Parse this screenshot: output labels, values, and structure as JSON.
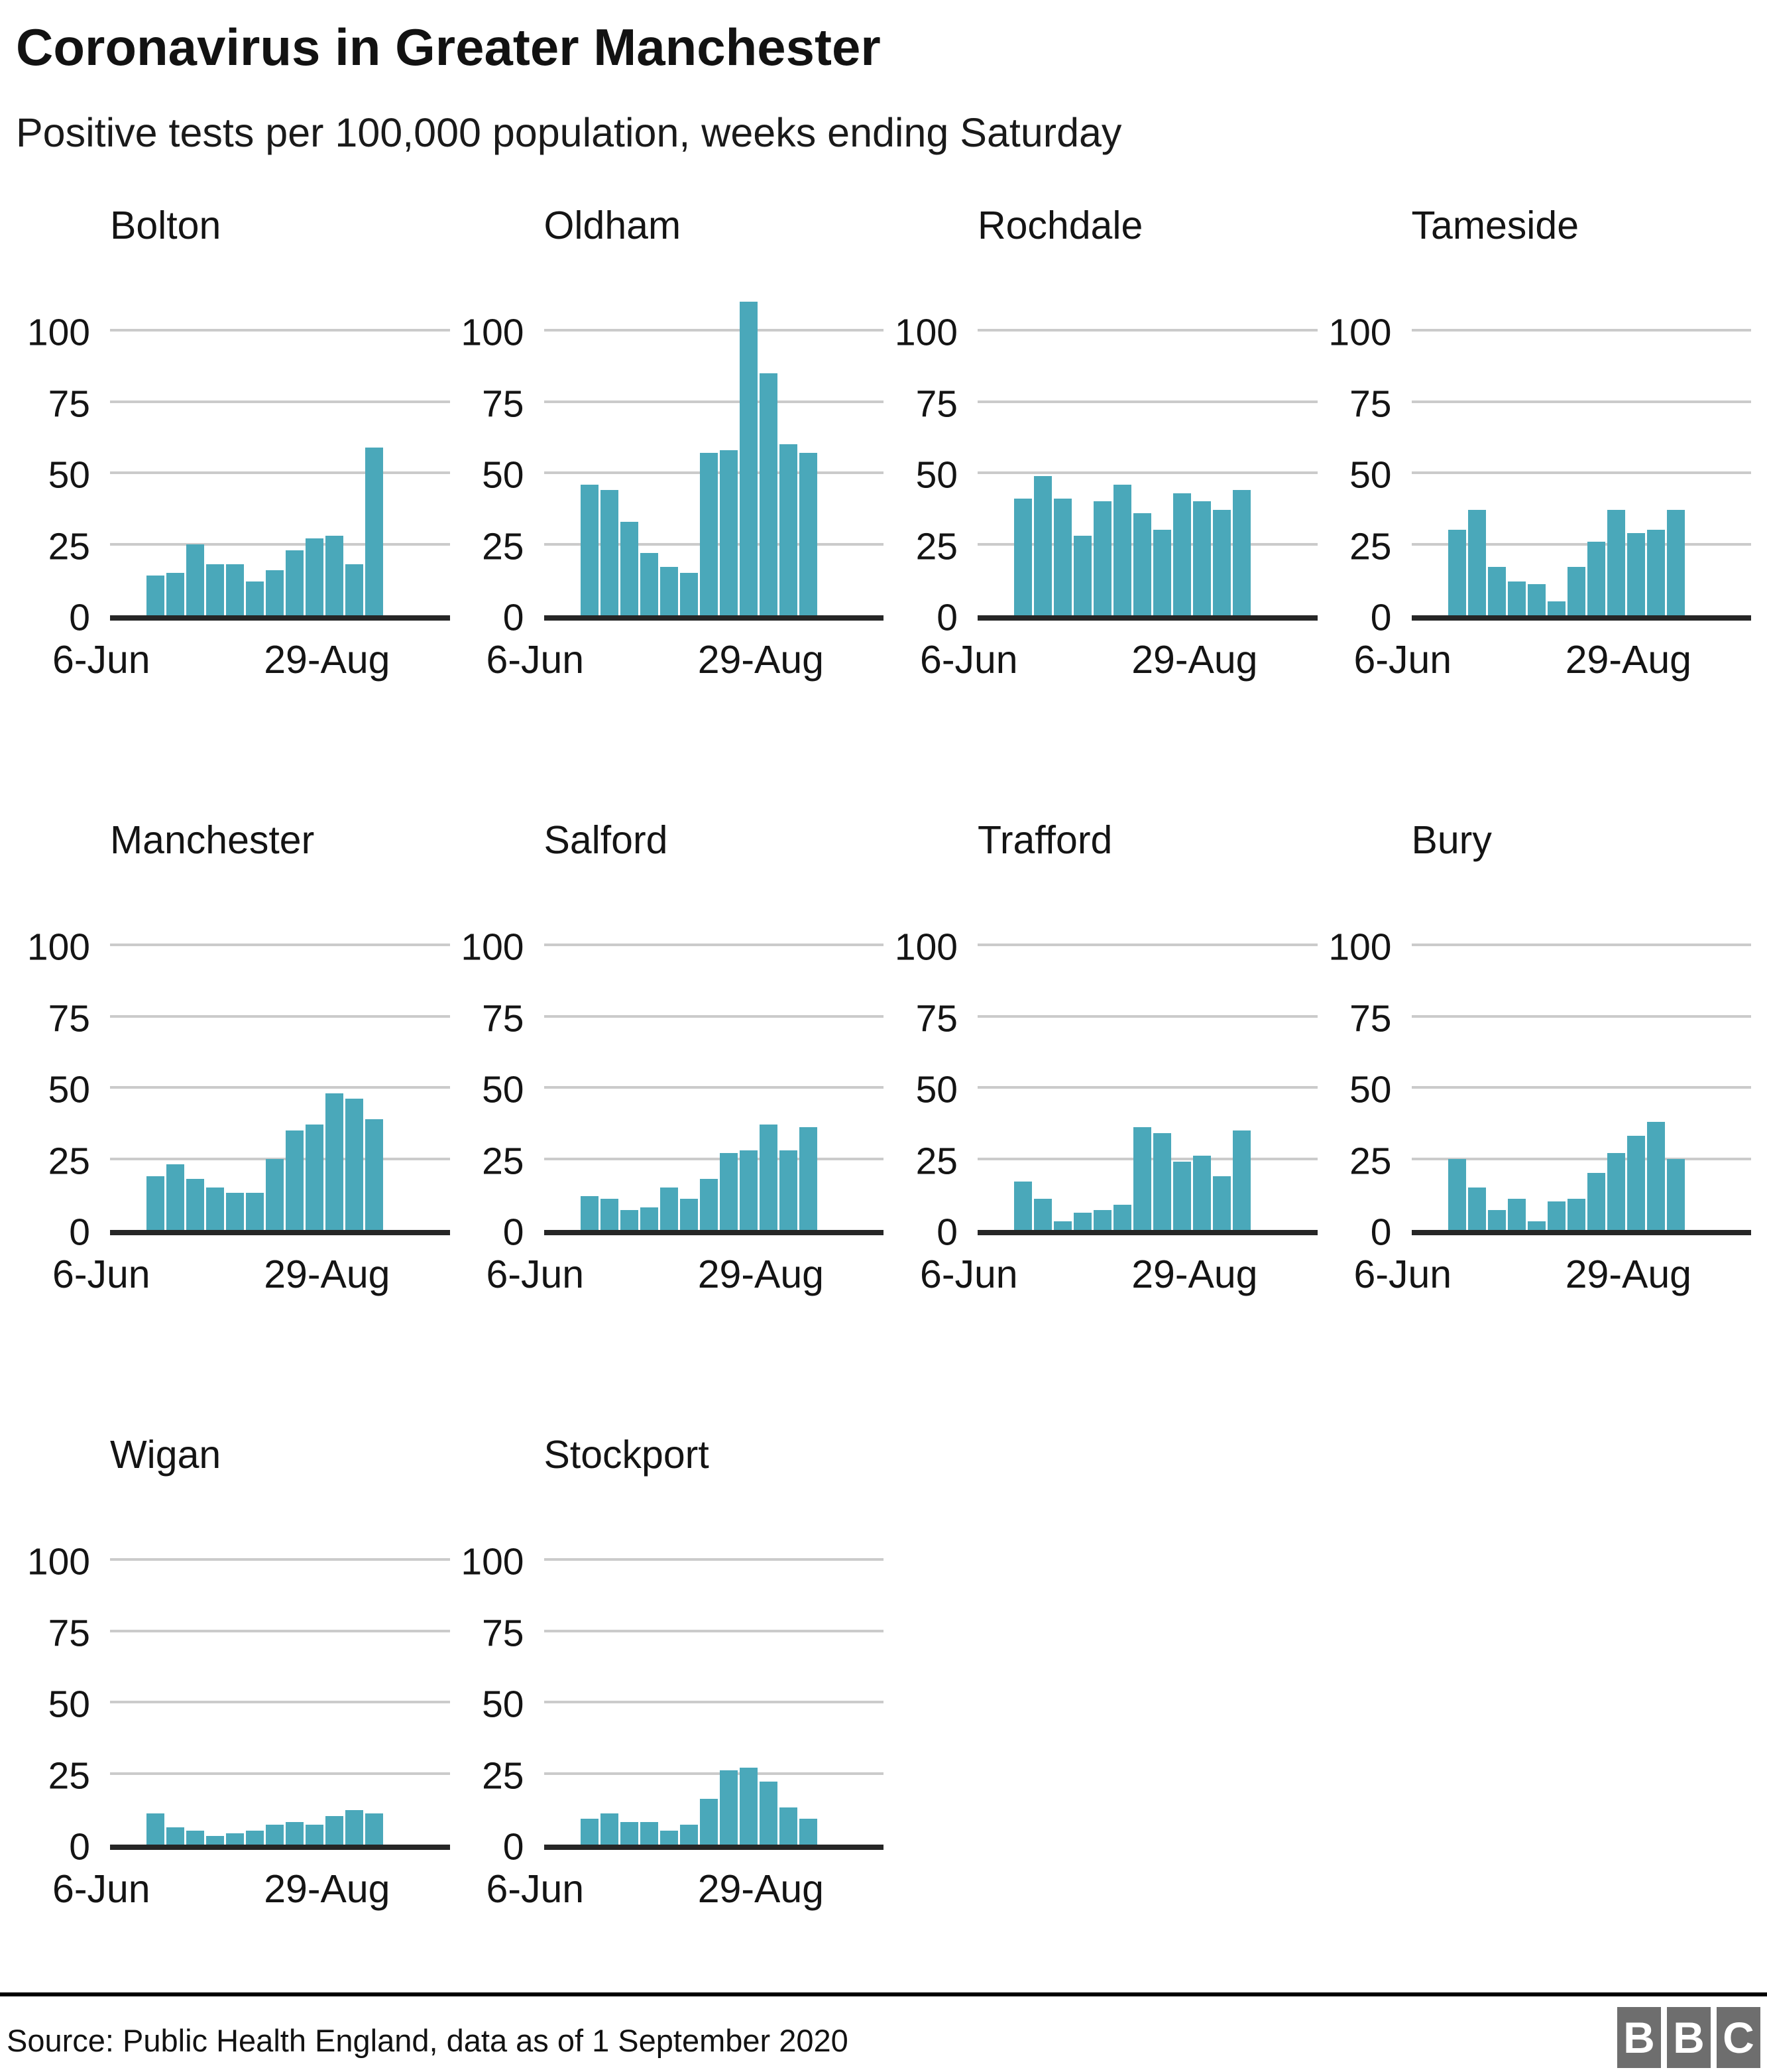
{
  "header": {
    "title": "Coronavirus in Greater Manchester",
    "subtitle": "Positive tests per 100,000 population, weeks ending Saturday"
  },
  "chart_data": {
    "type": "bar",
    "title": "Coronavirus in Greater Manchester",
    "subtitle": "Positive tests per 100,000 population, weeks ending Saturday",
    "layout": "small-multiples, 4 columns",
    "x_axis": {
      "first_label": "6-Jun",
      "last_label": "29-Aug",
      "points_per_series": 12
    },
    "y_axis": {
      "ticks": [
        0,
        25,
        50,
        75,
        100
      ],
      "ylim": [
        0,
        119
      ],
      "grid": true
    },
    "bar_color": "#4AA8BA",
    "gridline_color": "#CBCBCB",
    "axis_color": "#262626",
    "series": [
      {
        "name": "Bolton",
        "values": [
          14,
          15,
          25,
          18,
          18,
          12,
          16,
          23,
          27,
          28,
          18,
          59
        ]
      },
      {
        "name": "Oldham",
        "values": [
          46,
          44,
          33,
          22,
          17,
          15,
          57,
          58,
          110,
          85,
          60,
          57
        ]
      },
      {
        "name": "Rochdale",
        "values": [
          41,
          49,
          41,
          28,
          40,
          46,
          36,
          30,
          43,
          40,
          37,
          44
        ]
      },
      {
        "name": "Tameside",
        "values": [
          30,
          37,
          17,
          12,
          11,
          5,
          17,
          26,
          37,
          29,
          30,
          37
        ]
      },
      {
        "name": "Manchester",
        "values": [
          19,
          23,
          18,
          15,
          13,
          13,
          25,
          35,
          37,
          48,
          46,
          39
        ]
      },
      {
        "name": "Salford",
        "values": [
          12,
          11,
          7,
          8,
          15,
          11,
          18,
          27,
          28,
          37,
          28,
          36
        ]
      },
      {
        "name": "Trafford",
        "values": [
          17,
          11,
          3,
          6,
          7,
          9,
          36,
          34,
          24,
          26,
          19,
          35
        ]
      },
      {
        "name": "Bury",
        "values": [
          25,
          15,
          7,
          11,
          3,
          10,
          11,
          20,
          27,
          33,
          38,
          25
        ]
      },
      {
        "name": "Wigan",
        "values": [
          11,
          6,
          5,
          3,
          4,
          5,
          7,
          8,
          7,
          10,
          12,
          11
        ]
      },
      {
        "name": "Stockport",
        "values": [
          9,
          11,
          8,
          8,
          5,
          7,
          16,
          26,
          27,
          22,
          13,
          9
        ]
      }
    ]
  },
  "footer": {
    "source": "Source: Public Health England, data as of 1 September 2020",
    "logo_letters": [
      "B",
      "B",
      "C"
    ]
  }
}
